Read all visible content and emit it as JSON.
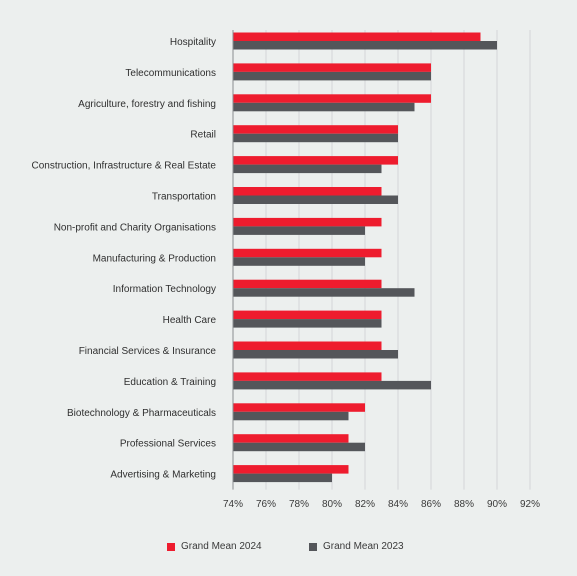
{
  "chart_data": {
    "type": "bar",
    "orientation": "horizontal",
    "categories": [
      "Hospitality",
      "Telecommunications",
      "Agriculture, forestry and fishing",
      "Retail",
      "Construction, Infrastructure & Real Estate",
      "Transportation",
      "Non-profit and Charity Organisations",
      "Manufacturing & Production",
      "Information Technology",
      "Health Care",
      "Financial Services & Insurance",
      "Education & Training",
      "Biotechnology & Pharmaceuticals",
      "Professional Services",
      "Advertising & Marketing"
    ],
    "series": [
      {
        "name": "Grand Mean 2024",
        "color": "#ee1c2e",
        "values": [
          89,
          86,
          86,
          84,
          84,
          83,
          83,
          83,
          83,
          83,
          83,
          83,
          82,
          81,
          81
        ]
      },
      {
        "name": "Grand Mean 2023",
        "color": "#54565a",
        "values": [
          90,
          86,
          85,
          84,
          83,
          84,
          82,
          82,
          85,
          83,
          84,
          86,
          81,
          82,
          80
        ]
      }
    ],
    "xlim": [
      74,
      92
    ],
    "xticks": [
      74,
      76,
      78,
      80,
      82,
      84,
      86,
      88,
      90,
      92
    ],
    "tick_suffix": "%",
    "grid": true,
    "legend": "bottom",
    "title": "",
    "xlabel": "",
    "ylabel": ""
  }
}
